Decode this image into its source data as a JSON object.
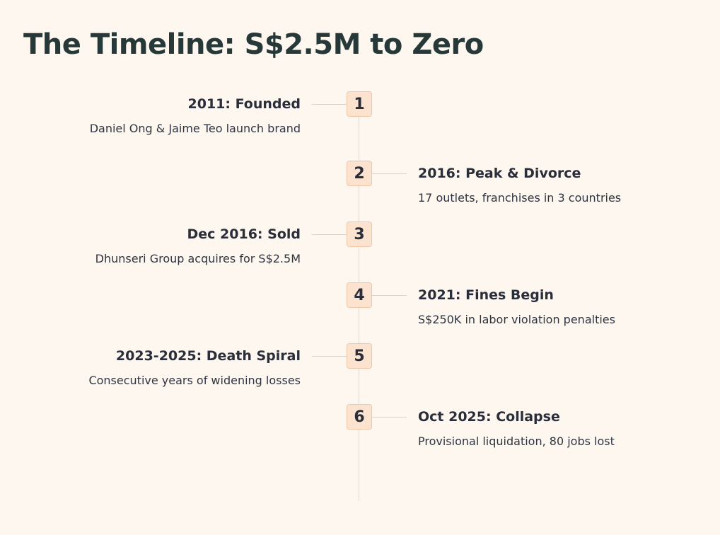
{
  "header": {
    "title": "The Timeline: S$2.5M to Zero"
  },
  "events": [
    {
      "number": "1",
      "title": "2011: Founded",
      "description": "Daniel Ong & Jaime Teo launch brand"
    },
    {
      "number": "2",
      "title": "2016: Peak & Divorce",
      "description": "17 outlets, franchises in 3 countries"
    },
    {
      "number": "3",
      "title": "Dec 2016: Sold",
      "description": "Dhunseri Group acquires for S$2.5M"
    },
    {
      "number": "4",
      "title": "2021: Fines Begin",
      "description": "S$250K in labor violation penalties"
    },
    {
      "number": "5",
      "title": "2023-2025: Death Spiral",
      "description": "Consecutive years of widening losses"
    },
    {
      "number": "6",
      "title": "Oct 2025: Collapse",
      "description": "Provisional liquidation, 80 jobs lost"
    }
  ]
}
